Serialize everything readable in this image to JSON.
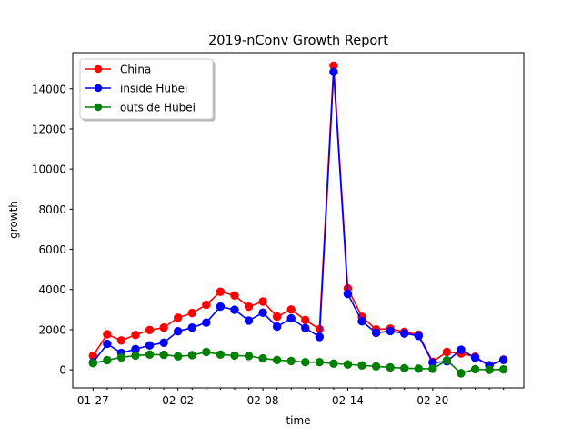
{
  "chart_data": {
    "type": "line",
    "title": "2019-nConv Growth Report",
    "xlabel": "time",
    "ylabel": "growth",
    "x": [
      "01-27",
      "01-28",
      "01-29",
      "01-30",
      "01-31",
      "02-01",
      "02-02",
      "02-03",
      "02-04",
      "02-05",
      "02-06",
      "02-07",
      "02-08",
      "02-09",
      "02-10",
      "02-11",
      "02-12",
      "02-13",
      "02-14",
      "02-15",
      "02-16",
      "02-17",
      "02-18",
      "02-19",
      "02-20",
      "02-21",
      "02-22",
      "02-23",
      "02-24",
      "02-25"
    ],
    "x_tick_labels": [
      "01-27",
      "02-02",
      "02-08",
      "02-14",
      "02-20"
    ],
    "x_tick_label_indices": [
      0,
      6,
      12,
      18,
      24
    ],
    "ylim": [
      -900,
      15800
    ],
    "y_ticks": [
      0,
      2000,
      4000,
      6000,
      8000,
      10000,
      12000,
      14000
    ],
    "legend_position": "upper-left",
    "grid": false,
    "series": [
      {
        "name": "China",
        "color": "#ff0000",
        "values": [
          700,
          1770,
          1460,
          1740,
          1980,
          2100,
          2590,
          2830,
          3240,
          3890,
          3700,
          3140,
          3400,
          2650,
          3000,
          2480,
          2020,
          15150,
          4050,
          2640,
          2010,
          2050,
          1890,
          1750,
          400,
          890,
          820,
          650,
          220,
          510
        ]
      },
      {
        "name": "inside Hubei",
        "color": "#0000ff",
        "values": [
          370,
          1290,
          840,
          1030,
          1220,
          1350,
          1920,
          2100,
          2350,
          3150,
          2990,
          2450,
          2840,
          2150,
          2560,
          2080,
          1640,
          14840,
          3780,
          2420,
          1840,
          1930,
          1810,
          1690,
          350,
          420,
          1000,
          600,
          220,
          490
        ]
      },
      {
        "name": "outside Hubei",
        "color": "#008000",
        "values": [
          330,
          480,
          620,
          710,
          760,
          750,
          670,
          730,
          890,
          760,
          710,
          690,
          570,
          490,
          440,
          380,
          380,
          310,
          270,
          220,
          170,
          120,
          80,
          60,
          50,
          470,
          -170,
          30,
          0,
          20
        ]
      }
    ]
  }
}
